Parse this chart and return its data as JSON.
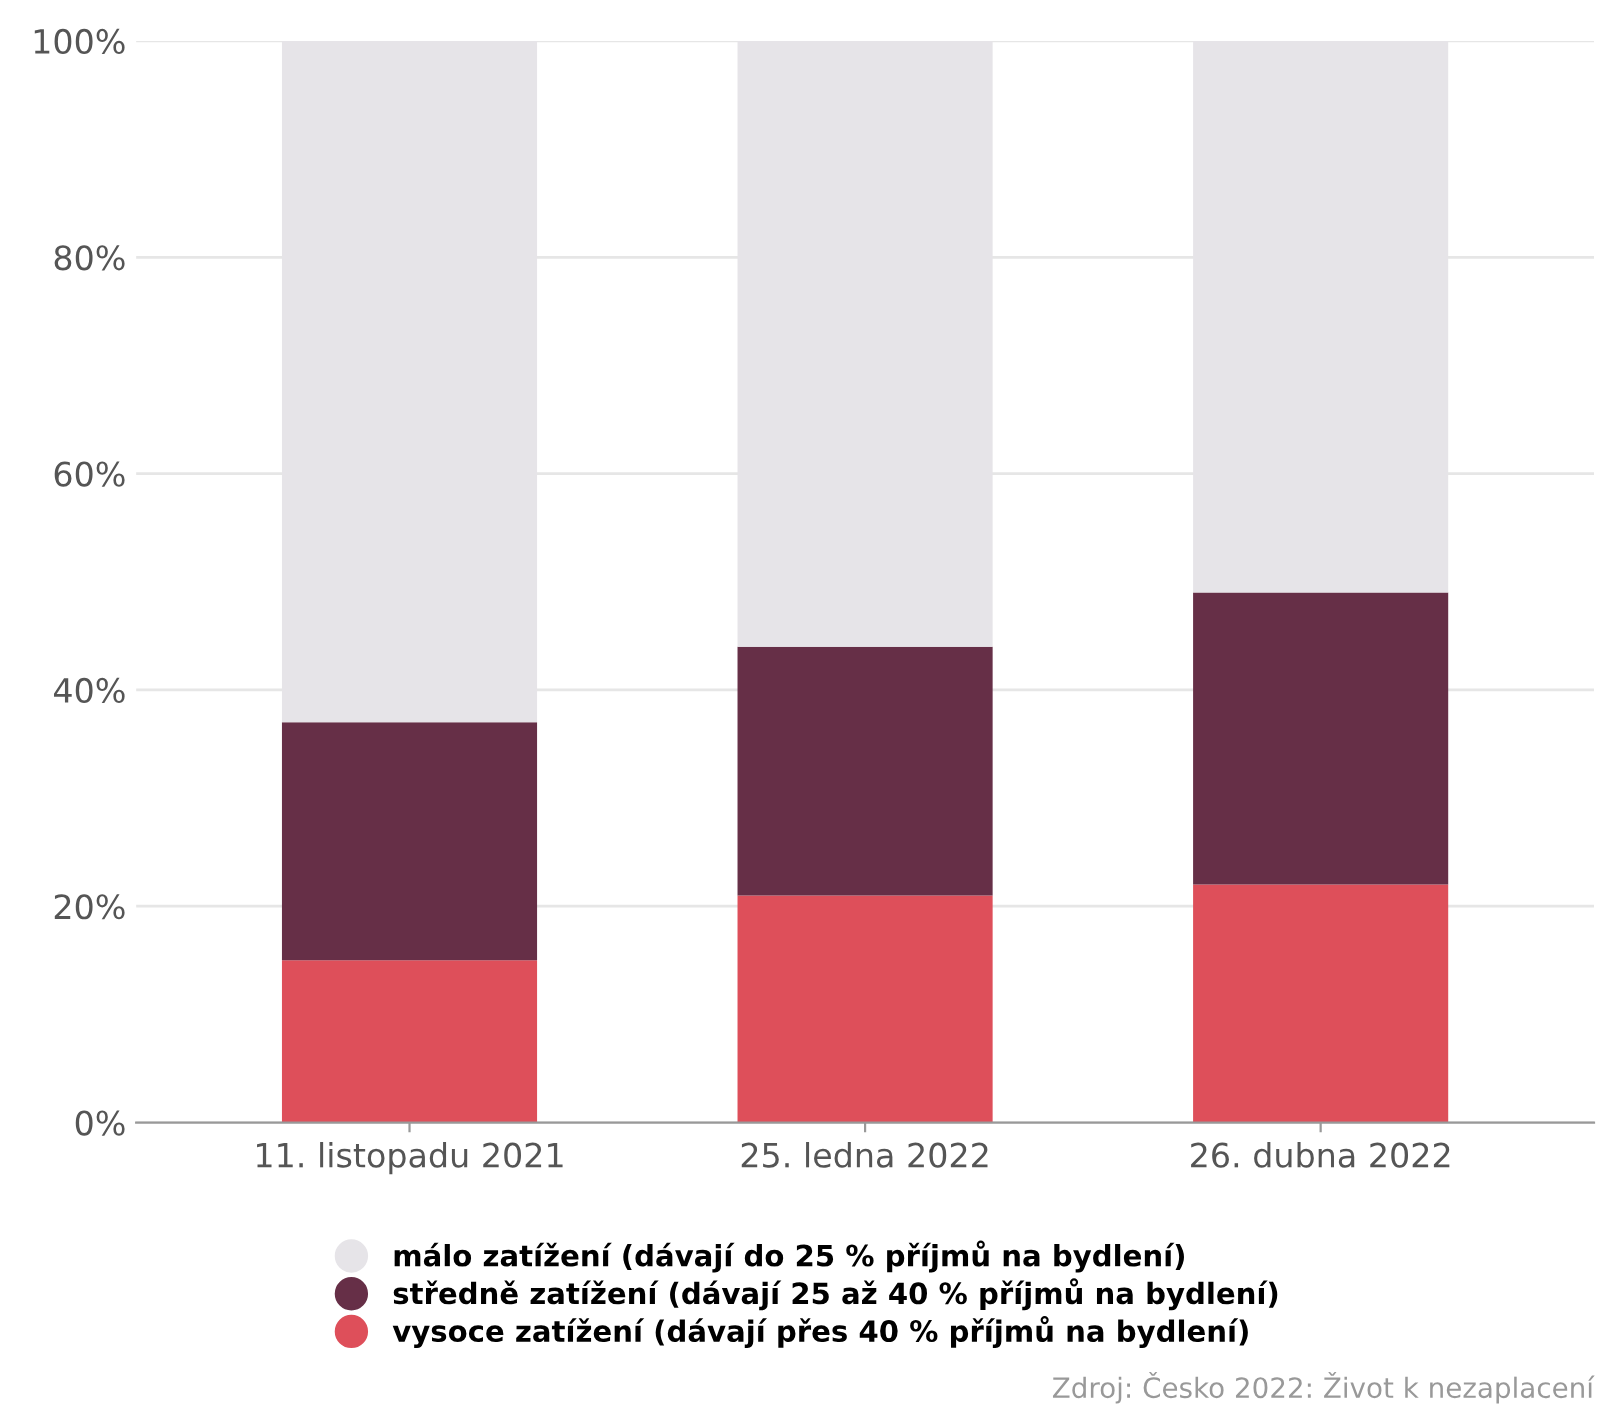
{
  "chart_data": {
    "type": "bar",
    "stacked": true,
    "categories": [
      "11. listopadu 2021",
      "25. ledna 2022",
      "26. dubna 2022"
    ],
    "series": [
      {
        "name": "vysoce zatížení (dávají přes 40 % příjmů na bydlení)",
        "color": "#de4f5a",
        "values": [
          15,
          21,
          22
        ]
      },
      {
        "name": "středně zatížení (dávají 25 až 40 % příjmů na bydlení)",
        "color": "#662f47",
        "values": [
          22,
          23,
          27
        ]
      },
      {
        "name": "málo zatížení (dávají do 25 % příjmů na bydlení)",
        "color": "#e6e4e8",
        "values": [
          63,
          56,
          51
        ]
      }
    ],
    "ylim": [
      0,
      100
    ],
    "yticks": [
      {
        "value": 0,
        "label": "0%"
      },
      {
        "value": 20,
        "label": "20%"
      },
      {
        "value": 40,
        "label": "40%"
      },
      {
        "value": 60,
        "label": "60%"
      },
      {
        "value": 80,
        "label": "80%"
      },
      {
        "value": 100,
        "label": "100%"
      }
    ],
    "grid": "y",
    "legend": "bottom",
    "annotations": [
      "Zdroj: Česko 2022: Život k nezaplacení"
    ]
  }
}
